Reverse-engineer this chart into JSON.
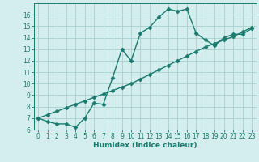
{
  "line1_x": [
    0,
    1,
    2,
    3,
    4,
    5,
    6,
    7,
    8,
    9,
    10,
    11,
    12,
    13,
    14,
    15,
    16,
    17,
    18,
    19,
    20,
    21,
    22,
    23
  ],
  "line1_y": [
    7.0,
    6.7,
    6.5,
    6.5,
    6.2,
    7.0,
    8.3,
    8.2,
    10.5,
    13.0,
    12.0,
    14.4,
    14.9,
    15.8,
    16.5,
    16.3,
    16.5,
    14.4,
    13.8,
    13.3,
    14.0,
    14.3,
    14.3,
    14.8
  ],
  "line2_x": [
    0,
    1,
    2,
    3,
    4,
    5,
    6,
    7,
    8,
    9,
    10,
    11,
    12,
    13,
    14,
    15,
    16,
    17,
    18,
    19,
    20,
    21,
    22,
    23
  ],
  "line2_y": [
    7.0,
    7.3,
    7.6,
    7.9,
    8.2,
    8.5,
    8.8,
    9.1,
    9.4,
    9.7,
    10.0,
    10.4,
    10.8,
    11.2,
    11.6,
    12.0,
    12.4,
    12.8,
    13.2,
    13.5,
    13.8,
    14.1,
    14.5,
    14.9
  ],
  "line_color": "#1a7a6e",
  "bg_color": "#d4eeee",
  "grid_color": "#aacfcf",
  "xlabel": "Humidex (Indice chaleur)",
  "ylim": [
    6,
    17
  ],
  "xlim": [
    -0.5,
    23.5
  ],
  "yticks": [
    6,
    7,
    8,
    9,
    10,
    11,
    12,
    13,
    14,
    15,
    16
  ],
  "xticks": [
    0,
    1,
    2,
    3,
    4,
    5,
    6,
    7,
    8,
    9,
    10,
    11,
    12,
    13,
    14,
    15,
    16,
    17,
    18,
    19,
    20,
    21,
    22,
    23
  ],
  "marker": "D",
  "markersize": 2.5,
  "linewidth": 1.0,
  "tick_fontsize": 5.5,
  "xlabel_fontsize": 6.5
}
